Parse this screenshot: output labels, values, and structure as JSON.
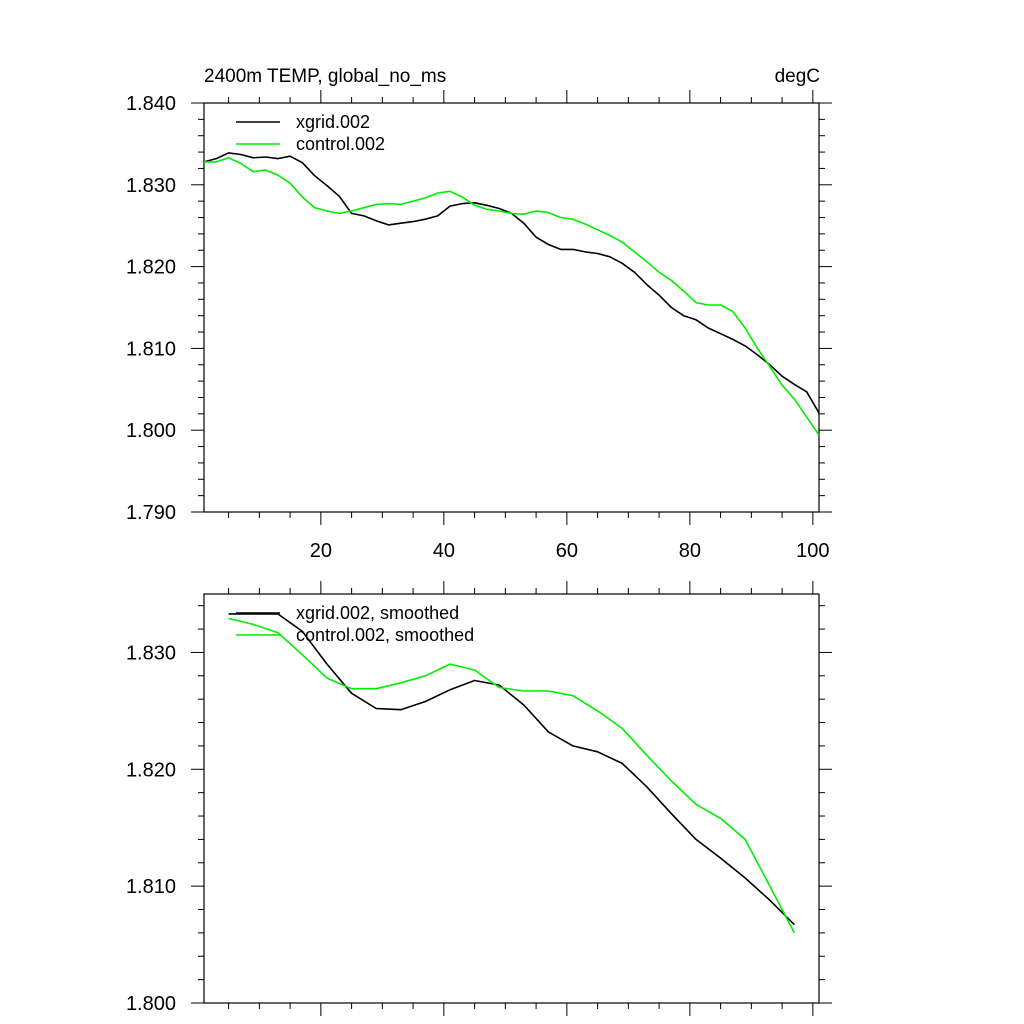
{
  "header": {
    "title": "2400m TEMP, global_no_ms",
    "units": "degC"
  },
  "chart_data": [
    {
      "type": "line",
      "xlim": [
        1,
        101
      ],
      "ylim": [
        1.79,
        1.84
      ],
      "x_ticks": [
        20,
        40,
        60,
        80,
        100
      ],
      "x_tick_labels": [
        "20",
        "40",
        "60",
        "80",
        "100"
      ],
      "y_ticks": [
        1.79,
        1.8,
        1.81,
        1.82,
        1.83,
        1.84
      ],
      "y_tick_labels": [
        "1.790",
        "1.800",
        "1.810",
        "1.820",
        "1.830",
        "1.840"
      ],
      "legend": "top-left",
      "series": [
        {
          "name": "xgrid.002",
          "color": "#000000",
          "x": [
            1,
            3,
            5,
            7,
            9,
            11,
            13,
            15,
            17,
            19,
            21,
            23,
            25,
            27,
            29,
            31,
            33,
            35,
            37,
            39,
            41,
            43,
            45,
            47,
            49,
            51,
            53,
            55,
            57,
            59,
            61,
            63,
            65,
            67,
            69,
            71,
            73,
            75,
            77,
            79,
            81,
            83,
            85,
            87,
            89,
            91,
            93,
            95,
            97,
            99,
            101
          ],
          "y": [
            1.8328,
            1.8332,
            1.8339,
            1.8337,
            1.8333,
            1.8334,
            1.8332,
            1.8335,
            1.8327,
            1.8311,
            1.8299,
            1.8286,
            1.8265,
            1.8262,
            1.8256,
            1.8251,
            1.8253,
            1.8255,
            1.8258,
            1.8262,
            1.8274,
            1.8277,
            1.8278,
            1.8275,
            1.8271,
            1.8265,
            1.8253,
            1.8236,
            1.8227,
            1.8221,
            1.8221,
            1.8218,
            1.8216,
            1.8212,
            1.8204,
            1.8193,
            1.8178,
            1.8165,
            1.815,
            1.814,
            1.8135,
            1.8125,
            1.8118,
            1.8111,
            1.8103,
            1.8092,
            1.808,
            1.8066,
            1.8056,
            1.8047,
            1.8021
          ]
        },
        {
          "name": "control.002",
          "color": "#00ee00",
          "x": [
            1,
            3,
            5,
            7,
            9,
            11,
            13,
            15,
            17,
            19,
            21,
            23,
            25,
            27,
            29,
            31,
            33,
            35,
            37,
            39,
            41,
            43,
            45,
            47,
            49,
            51,
            53,
            55,
            57,
            59,
            61,
            63,
            65,
            67,
            69,
            71,
            73,
            75,
            77,
            79,
            81,
            83,
            85,
            87,
            89,
            91,
            93,
            95,
            97,
            99,
            101
          ],
          "y": [
            1.8328,
            1.8328,
            1.8333,
            1.8326,
            1.8316,
            1.8318,
            1.8312,
            1.8302,
            1.8285,
            1.8272,
            1.8268,
            1.8265,
            1.8268,
            1.8272,
            1.8276,
            1.8277,
            1.8276,
            1.828,
            1.8284,
            1.829,
            1.8292,
            1.8285,
            1.8275,
            1.827,
            1.8268,
            1.8265,
            1.8264,
            1.8268,
            1.8266,
            1.826,
            1.8258,
            1.8252,
            1.8245,
            1.8238,
            1.823,
            1.8218,
            1.8206,
            1.8193,
            1.8183,
            1.817,
            1.8156,
            1.8153,
            1.8153,
            1.8145,
            1.8125,
            1.81,
            1.8078,
            1.8055,
            1.8038,
            1.8016,
            1.7994
          ]
        }
      ]
    },
    {
      "type": "line",
      "xlim": [
        1,
        101
      ],
      "ylim": [
        1.8,
        1.835
      ],
      "x_ticks": [
        20,
        40,
        60,
        80,
        100
      ],
      "y_ticks": [
        1.8,
        1.81,
        1.82,
        1.83
      ],
      "y_tick_labels": [
        "1.800",
        "1.810",
        "1.820",
        "1.830"
      ],
      "legend": "top-left",
      "series": [
        {
          "name": "xgrid.002, smoothed",
          "color": "#000000",
          "x": [
            5,
            9,
            13,
            17,
            21,
            25,
            29,
            33,
            37,
            41,
            45,
            49,
            53,
            57,
            61,
            65,
            69,
            73,
            77,
            81,
            85,
            89,
            93,
            97
          ],
          "y": [
            1.8333,
            1.8333,
            1.8333,
            1.8318,
            1.829,
            1.8265,
            1.8252,
            1.8251,
            1.8258,
            1.8268,
            1.8276,
            1.8272,
            1.8255,
            1.8232,
            1.822,
            1.8215,
            1.8205,
            1.8185,
            1.8162,
            1.814,
            1.8124,
            1.8107,
            1.8088,
            1.8067
          ]
        },
        {
          "name": "control.002, smoothed",
          "color": "#00ee00",
          "x": [
            5,
            9,
            13,
            17,
            21,
            25,
            29,
            33,
            37,
            41,
            45,
            49,
            53,
            57,
            61,
            65,
            69,
            73,
            77,
            81,
            85,
            89,
            93,
            97
          ],
          "y": [
            1.8329,
            1.8324,
            1.8317,
            1.8298,
            1.8278,
            1.8269,
            1.8269,
            1.8274,
            1.828,
            1.829,
            1.8285,
            1.827,
            1.8267,
            1.8267,
            1.8263,
            1.825,
            1.8235,
            1.8212,
            1.819,
            1.817,
            1.8158,
            1.814,
            1.81,
            1.806
          ]
        }
      ]
    }
  ]
}
